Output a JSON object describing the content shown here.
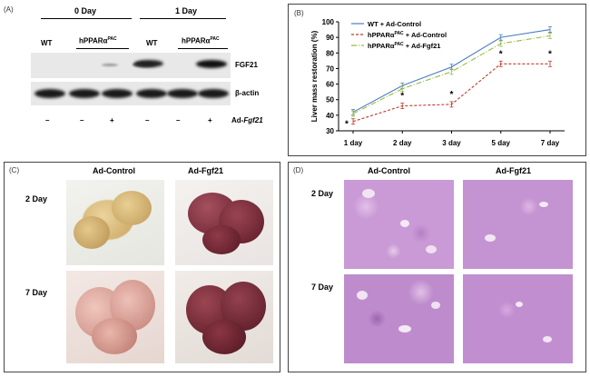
{
  "panelA": {
    "label": "(A)",
    "group_0day": "0 Day",
    "group_1day": "1 Day",
    "col_wt": "WT",
    "col_hppar": "hPPARα",
    "col_hppar_sup": "PAC",
    "band_fgf21": "FGF21",
    "band_actin": "β-actin",
    "treat_label_prefix": "Ad-",
    "treat_label_gene": "Fgf21",
    "treatments": [
      "–",
      "–",
      "+",
      "–",
      "–",
      "+"
    ]
  },
  "panelB": {
    "label": "(B)",
    "legend": [
      {
        "base": "WT + Ad-Control",
        "sup": "",
        "tail": ""
      },
      {
        "base": "hPPARα",
        "sup": "PAC",
        "tail": " + Ad-Control"
      },
      {
        "base": "hPPARα",
        "sup": "PAC",
        "tail": " + Ad-Fgf21"
      }
    ],
    "asterisk": "*"
  },
  "chart_data": {
    "type": "line",
    "categories": [
      "1 day",
      "2 day",
      "3 day",
      "5 day",
      "7 day"
    ],
    "series": [
      {
        "name": "WT + Ad-Control",
        "values": [
          42,
          59,
          71,
          90,
          95
        ],
        "color": "#4a7dbf",
        "dash": "solid"
      },
      {
        "name": "hPPARαPAC + Ad-Control",
        "values": [
          36,
          46,
          47,
          73,
          73
        ],
        "color": "#c0392b",
        "dash": "dashed"
      },
      {
        "name": "hPPARαPAC + Ad-Fgf21",
        "values": [
          41,
          57,
          68,
          86,
          91
        ],
        "color": "#9bbb3f",
        "dash": "dashdot"
      }
    ],
    "ylabel": "Liver mass restoration (%)",
    "xlabel": "",
    "ylim": [
      30,
      100
    ],
    "yticks": [
      30,
      40,
      50,
      60,
      70,
      80,
      90,
      100
    ],
    "grid": false,
    "legend_position": "top-left",
    "significance_marked": [
      "1 day",
      "2 day",
      "3 day",
      "5 day",
      "7 day"
    ]
  },
  "panelC": {
    "label": "(C)",
    "col1": "Ad-Control",
    "col2": "Ad-Fgf21",
    "row1": "2 Day",
    "row2": "7 Day"
  },
  "panelD": {
    "label": "(D)",
    "col1": "Ad-Control",
    "col2": "Ad-Fgf21",
    "row1": "2 Day",
    "row2": "7 Day"
  },
  "colors": {
    "he_stain": "#c99ad6",
    "liver_control": "#d9bb7f",
    "liver_fgf21": "#7a2a36"
  }
}
